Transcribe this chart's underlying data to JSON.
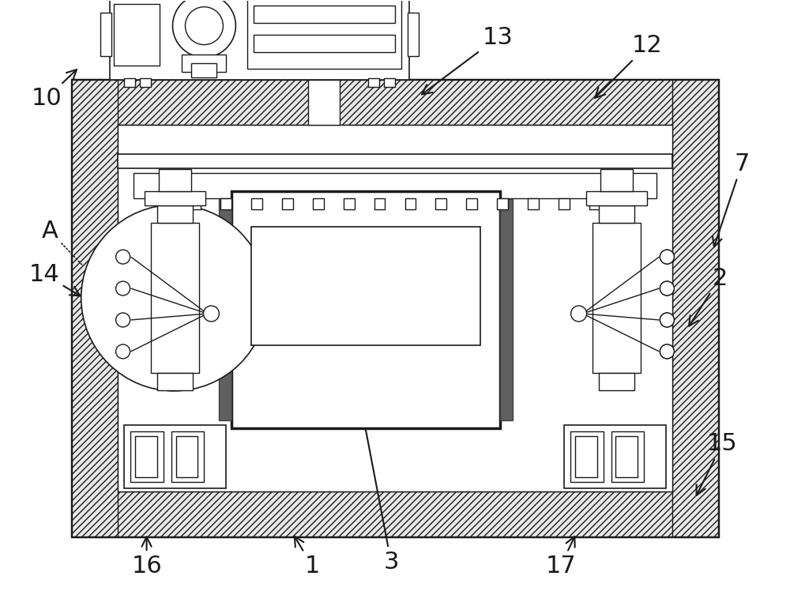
{
  "bg_color": "#ffffff",
  "lc": "#1a1a1a",
  "figsize": [
    10.0,
    7.67
  ],
  "lw_main": 1.5,
  "lw_thick": 2.5,
  "lw_thin": 1.0,
  "lw_med": 1.2
}
